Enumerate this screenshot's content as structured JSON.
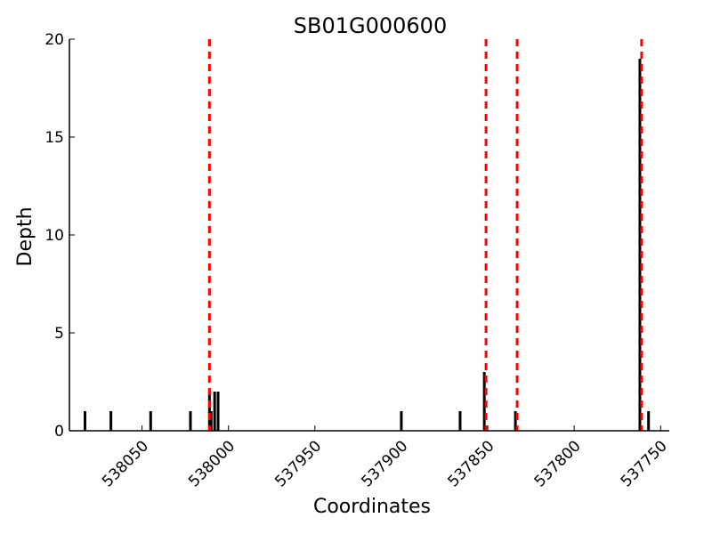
{
  "chart_data": {
    "type": "bar",
    "title": "SB01G000600",
    "xlabel": "Coordinates",
    "ylabel": "Depth",
    "xlim": [
      538092,
      537745
    ],
    "ylim": [
      0,
      20
    ],
    "x_reversed": true,
    "x_ticks": [
      538050,
      538000,
      537950,
      537900,
      537850,
      537800,
      537750
    ],
    "x_tick_labels": [
      "538050",
      "538000",
      "537950",
      "537900",
      "537850",
      "537800",
      "537750"
    ],
    "y_ticks": [
      0,
      5,
      10,
      15,
      20
    ],
    "y_tick_labels": [
      "0",
      "5",
      "10",
      "15",
      "20"
    ],
    "grid": false,
    "points": [
      {
        "x": 538083,
        "y": 1
      },
      {
        "x": 538068,
        "y": 1
      },
      {
        "x": 538045,
        "y": 1
      },
      {
        "x": 538022,
        "y": 1
      },
      {
        "x": 538011,
        "y": 2
      },
      {
        "x": 538010,
        "y": 1
      },
      {
        "x": 538008,
        "y": 2
      },
      {
        "x": 538006,
        "y": 2
      },
      {
        "x": 537900,
        "y": 1
      },
      {
        "x": 537866,
        "y": 1
      },
      {
        "x": 537852,
        "y": 3
      },
      {
        "x": 537834,
        "y": 1
      },
      {
        "x": 537762,
        "y": 19
      },
      {
        "x": 537757,
        "y": 1
      }
    ],
    "vlines": [
      538011,
      537851,
      537833,
      537761
    ],
    "bar_color": "#000000",
    "vline_color": "#ff0000",
    "vline_style": "dashed"
  }
}
